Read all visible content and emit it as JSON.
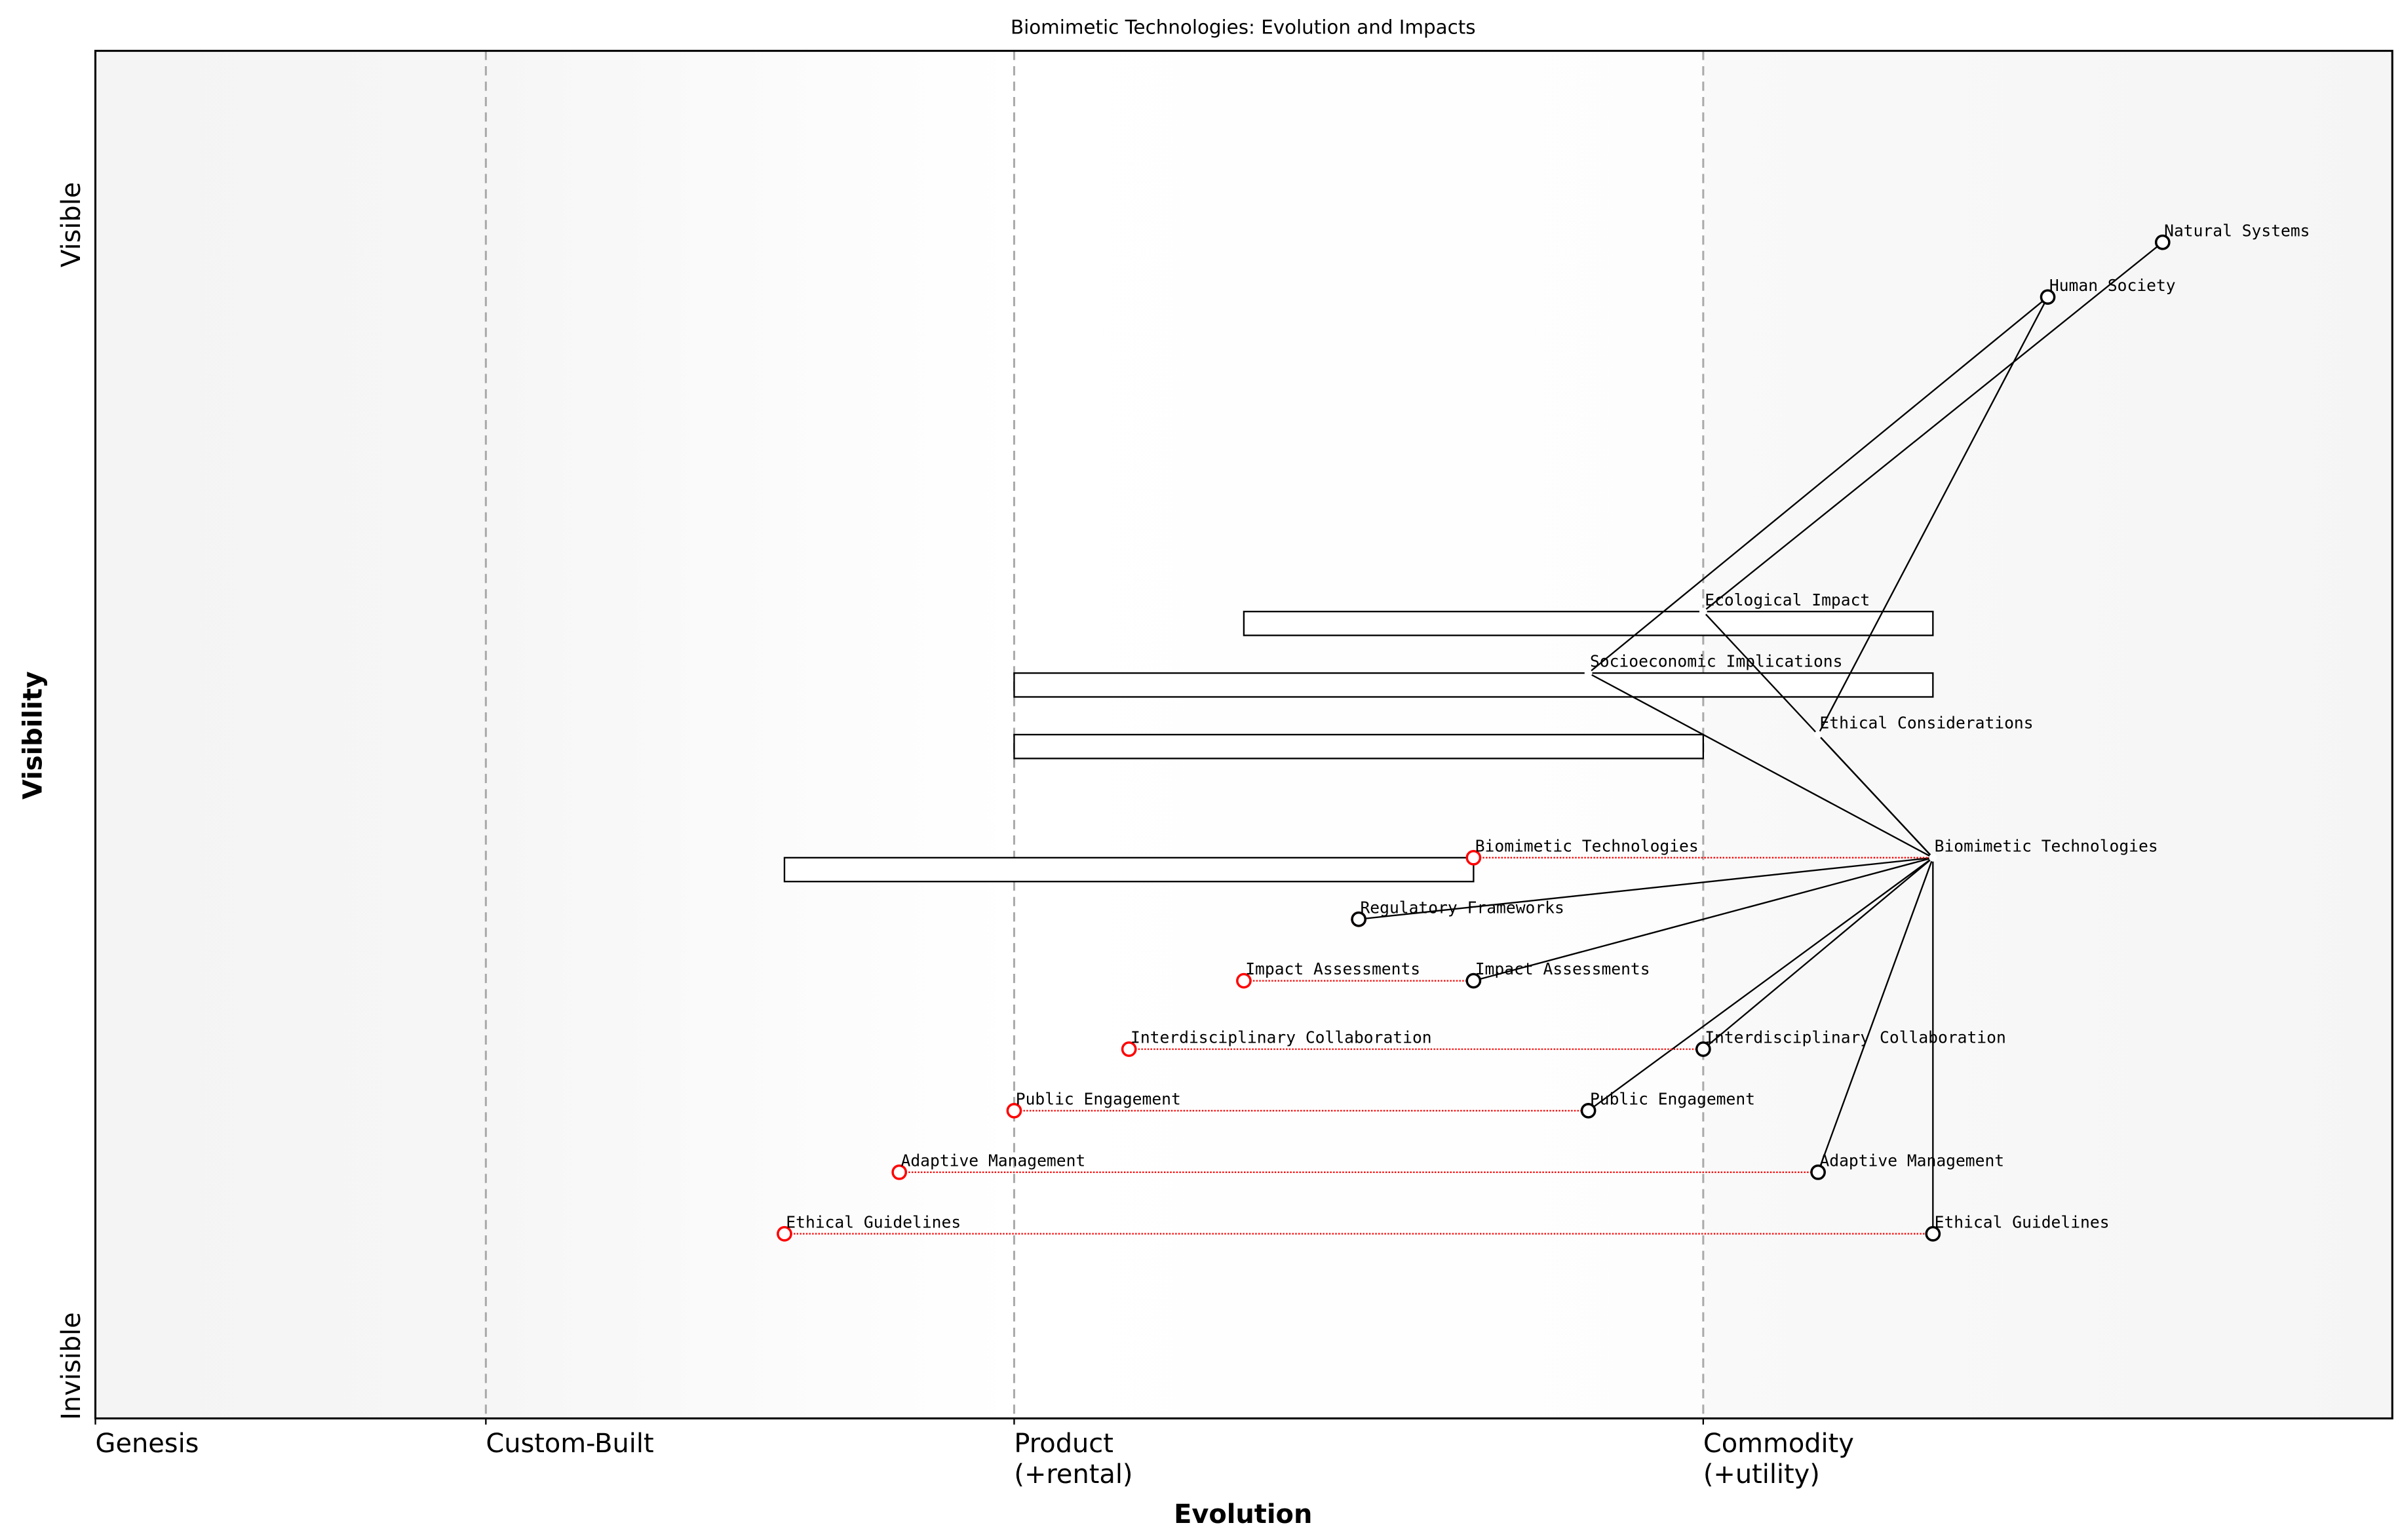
{
  "chart_data": {
    "type": "wardley-map",
    "title": "Biomimetic Technologies: Evolution and Impacts",
    "xlabel": "Evolution",
    "ylabel": "Visibility",
    "xlim": [
      0,
      1
    ],
    "ylim": [
      0,
      1
    ],
    "x_stages": [
      {
        "label": "Genesis",
        "sub": "",
        "x": 0.0
      },
      {
        "label": "Custom-Built",
        "sub": "",
        "x": 0.17
      },
      {
        "label": "Product",
        "sub": "(+rental)",
        "x": 0.4
      },
      {
        "label": "Commodity",
        "sub": "(+utility)",
        "x": 0.7
      }
    ],
    "y_labels": {
      "top": "Visible",
      "bottom": "Invisible"
    },
    "colors": {
      "node": "#000000",
      "evolve": "#ff0000",
      "stage_line": "#aaaaaa"
    },
    "components": [
      {
        "name": "Natural Systems",
        "x": 0.9,
        "y": 0.86,
        "marker": true
      },
      {
        "name": "Human Society",
        "x": 0.85,
        "y": 0.82,
        "marker": true
      },
      {
        "name": "Ecological Impact",
        "x": 0.7,
        "y": 0.59,
        "marker": false
      },
      {
        "name": "Socioeconomic Implications",
        "x": 0.65,
        "y": 0.545,
        "marker": false
      },
      {
        "name": "Ethical Considerations",
        "x": 0.75,
        "y": 0.5,
        "marker": false
      },
      {
        "name": "Biomimetic Technologies",
        "x": 0.8,
        "y": 0.41,
        "marker": false
      },
      {
        "name": "Regulatory Frameworks",
        "x": 0.55,
        "y": 0.365,
        "marker": true
      },
      {
        "name": "Impact Assessments",
        "x": 0.6,
        "y": 0.32,
        "marker": true
      },
      {
        "name": "Interdisciplinary Collaboration",
        "x": 0.7,
        "y": 0.27,
        "marker": true
      },
      {
        "name": "Public Engagement",
        "x": 0.65,
        "y": 0.225,
        "marker": true
      },
      {
        "name": "Adaptive Management",
        "x": 0.75,
        "y": 0.18,
        "marker": true
      },
      {
        "name": "Ethical Guidelines",
        "x": 0.8,
        "y": 0.135,
        "marker": true
      }
    ],
    "evolutions": [
      {
        "name": "Biomimetic Technologies",
        "from_x": 0.6,
        "to_x": 0.8,
        "y": 0.41
      },
      {
        "name": "Regulatory Frameworks",
        "from_x": 0.55,
        "to_x": 0.55,
        "y": 0.365
      },
      {
        "name": "Impact Assessments",
        "from_x": 0.5,
        "to_x": 0.6,
        "y": 0.32
      },
      {
        "name": "Interdisciplinary Collaboration",
        "from_x": 0.45,
        "to_x": 0.7,
        "y": 0.27
      },
      {
        "name": "Public Engagement",
        "from_x": 0.4,
        "to_x": 0.65,
        "y": 0.225
      },
      {
        "name": "Adaptive Management",
        "from_x": 0.35,
        "to_x": 0.75,
        "y": 0.18
      },
      {
        "name": "Ethical Guidelines",
        "from_x": 0.3,
        "to_x": 0.8,
        "y": 0.135
      }
    ],
    "pipelines": [
      {
        "component": "Ecological Impact",
        "x_start": 0.5,
        "x_end": 0.8,
        "y": 0.59
      },
      {
        "component": "Socioeconomic Implications",
        "x_start": 0.4,
        "x_end": 0.8,
        "y": 0.545
      },
      {
        "component": "Ethical Considerations",
        "x_start": 0.4,
        "x_end": 0.7,
        "y": 0.5
      },
      {
        "component": "Biomimetic Technologies",
        "x_start": 0.3,
        "x_end": 0.6,
        "y": 0.41
      }
    ],
    "links": [
      [
        "Natural Systems",
        "Ecological Impact"
      ],
      [
        "Human Society",
        "Socioeconomic Implications"
      ],
      [
        "Human Society",
        "Ethical Considerations"
      ],
      [
        "Ecological Impact",
        "Biomimetic Technologies"
      ],
      [
        "Ethical Considerations",
        "Biomimetic Technologies"
      ],
      [
        "Socioeconomic Implications",
        "Biomimetic Technologies"
      ],
      [
        "Biomimetic Technologies",
        "Regulatory Frameworks"
      ],
      [
        "Biomimetic Technologies",
        "Impact Assessments"
      ],
      [
        "Biomimetic Technologies",
        "Interdisciplinary Collaboration"
      ],
      [
        "Biomimetic Technologies",
        "Public Engagement"
      ],
      [
        "Biomimetic Technologies",
        "Adaptive Management"
      ],
      [
        "Biomimetic Technologies",
        "Ethical Guidelines"
      ]
    ]
  }
}
